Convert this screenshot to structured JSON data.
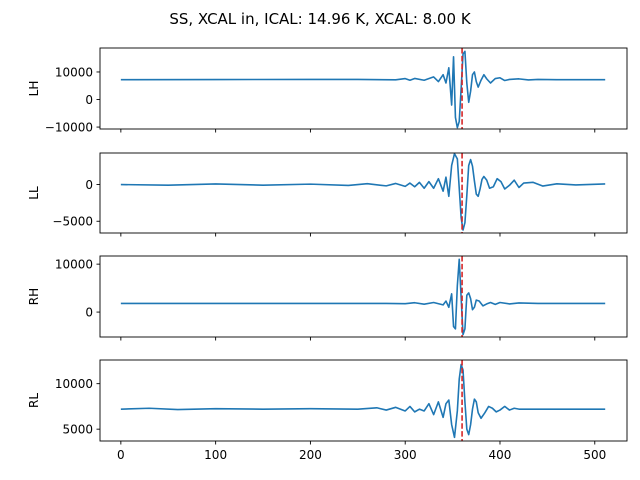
{
  "chart_data": {
    "type": "line",
    "title": "SS, XCAL in, ICAL: 14.96 K, XCAL: 8.00 K",
    "shared_x": true,
    "xlim": [
      -22,
      534
    ],
    "x_ticks": [
      0,
      100,
      200,
      300,
      400,
      500
    ],
    "x_tick_labels": [
      "0",
      "100",
      "200",
      "300",
      "400",
      "500"
    ],
    "series_color": "#1f77b4",
    "marker_color": "#d62728",
    "marker_x": 360,
    "panels": [
      {
        "ylabel": "LH",
        "ylim": [
          -10700,
          18700
        ],
        "y_ticks": [
          -10000,
          0,
          10000
        ],
        "y_tick_labels": [
          "−10000",
          "0",
          "10000"
        ],
        "baseline": 7200,
        "points": [
          [
            0,
            7200
          ],
          [
            100,
            7250
          ],
          [
            200,
            7300
          ],
          [
            250,
            7300
          ],
          [
            290,
            7150
          ],
          [
            300,
            7600
          ],
          [
            305,
            7000
          ],
          [
            310,
            7650
          ],
          [
            320,
            7000
          ],
          [
            330,
            8200
          ],
          [
            335,
            6500
          ],
          [
            340,
            9000
          ],
          [
            343,
            6000
          ],
          [
            346,
            11500
          ],
          [
            349,
            -2000
          ],
          [
            351,
            15500
          ],
          [
            353,
            -6500
          ],
          [
            355,
            -10200
          ],
          [
            357,
            -8000
          ],
          [
            359,
            4000
          ],
          [
            361,
            16500
          ],
          [
            363,
            17500
          ],
          [
            365,
            6000
          ],
          [
            367,
            -1000
          ],
          [
            369,
            3000
          ],
          [
            371,
            9000
          ],
          [
            373,
            10000
          ],
          [
            375,
            6500
          ],
          [
            377,
            4500
          ],
          [
            380,
            7000
          ],
          [
            383,
            9000
          ],
          [
            386,
            7500
          ],
          [
            390,
            6000
          ],
          [
            395,
            7600
          ],
          [
            400,
            7900
          ],
          [
            405,
            6900
          ],
          [
            410,
            7300
          ],
          [
            420,
            7500
          ],
          [
            430,
            7100
          ],
          [
            440,
            7300
          ],
          [
            460,
            7200
          ],
          [
            511,
            7200
          ]
        ]
      },
      {
        "ylabel": "LL",
        "ylim": [
          -6600,
          4300
        ],
        "y_ticks": [
          -5000,
          0
        ],
        "y_tick_labels": [
          "−5000",
          "0"
        ],
        "baseline": 0,
        "points": [
          [
            0,
            0
          ],
          [
            50,
            -80
          ],
          [
            100,
            80
          ],
          [
            150,
            -80
          ],
          [
            200,
            60
          ],
          [
            240,
            -120
          ],
          [
            260,
            120
          ],
          [
            280,
            -180
          ],
          [
            290,
            150
          ],
          [
            300,
            -250
          ],
          [
            305,
            200
          ],
          [
            310,
            -300
          ],
          [
            315,
            300
          ],
          [
            320,
            -500
          ],
          [
            325,
            400
          ],
          [
            330,
            -500
          ],
          [
            335,
            800
          ],
          [
            340,
            -900
          ],
          [
            343,
            1000
          ],
          [
            346,
            -1600
          ],
          [
            349,
            2600
          ],
          [
            352,
            4200
          ],
          [
            355,
            3500
          ],
          [
            357,
            -500
          ],
          [
            359,
            -4500
          ],
          [
            361,
            -6200
          ],
          [
            363,
            -5200
          ],
          [
            365,
            -1500
          ],
          [
            367,
            2600
          ],
          [
            369,
            3400
          ],
          [
            371,
            2500
          ],
          [
            373,
            500
          ],
          [
            375,
            -1300
          ],
          [
            377,
            -1600
          ],
          [
            379,
            -600
          ],
          [
            381,
            700
          ],
          [
            383,
            1100
          ],
          [
            386,
            600
          ],
          [
            389,
            -500
          ],
          [
            393,
            -300
          ],
          [
            397,
            800
          ],
          [
            401,
            400
          ],
          [
            405,
            -600
          ],
          [
            410,
            -100
          ],
          [
            415,
            600
          ],
          [
            420,
            -400
          ],
          [
            425,
            200
          ],
          [
            435,
            300
          ],
          [
            445,
            -200
          ],
          [
            460,
            100
          ],
          [
            480,
            -50
          ],
          [
            511,
            80
          ]
        ]
      },
      {
        "ylabel": "RH",
        "ylim": [
          -5200,
          11700
        ],
        "y_ticks": [
          0,
          10000
        ],
        "y_tick_labels": [
          "0",
          "10000"
        ],
        "baseline": 1800,
        "points": [
          [
            0,
            1800
          ],
          [
            100,
            1800
          ],
          [
            200,
            1800
          ],
          [
            280,
            1800
          ],
          [
            300,
            1750
          ],
          [
            310,
            1950
          ],
          [
            320,
            1650
          ],
          [
            330,
            2000
          ],
          [
            340,
            1500
          ],
          [
            343,
            2300
          ],
          [
            346,
            1000
          ],
          [
            349,
            3800
          ],
          [
            351,
            -3000
          ],
          [
            353,
            -3500
          ],
          [
            355,
            5500
          ],
          [
            357,
            11000
          ],
          [
            359,
            3000
          ],
          [
            361,
            -4700
          ],
          [
            363,
            -3500
          ],
          [
            365,
            3500
          ],
          [
            367,
            4000
          ],
          [
            369,
            2800
          ],
          [
            371,
            500
          ],
          [
            373,
            1000
          ],
          [
            375,
            2500
          ],
          [
            378,
            2300
          ],
          [
            382,
            1300
          ],
          [
            386,
            1700
          ],
          [
            390,
            2000
          ],
          [
            395,
            1600
          ],
          [
            400,
            2000
          ],
          [
            410,
            1700
          ],
          [
            420,
            1900
          ],
          [
            440,
            1800
          ],
          [
            511,
            1800
          ]
        ]
      },
      {
        "ylabel": "RL",
        "ylim": [
          3700,
          12600
        ],
        "y_ticks": [
          5000,
          10000
        ],
        "y_tick_labels": [
          "5000",
          "10000"
        ],
        "baseline": 7200,
        "points": [
          [
            0,
            7200
          ],
          [
            30,
            7300
          ],
          [
            60,
            7150
          ],
          [
            100,
            7250
          ],
          [
            150,
            7200
          ],
          [
            200,
            7250
          ],
          [
            250,
            7200
          ],
          [
            270,
            7350
          ],
          [
            280,
            7100
          ],
          [
            290,
            7400
          ],
          [
            300,
            7000
          ],
          [
            305,
            7500
          ],
          [
            310,
            6900
          ],
          [
            315,
            7200
          ],
          [
            320,
            7000
          ],
          [
            325,
            7800
          ],
          [
            330,
            6600
          ],
          [
            335,
            8000
          ],
          [
            340,
            6300
          ],
          [
            343,
            7800
          ],
          [
            346,
            8200
          ],
          [
            349,
            5500
          ],
          [
            352,
            4100
          ],
          [
            355,
            7000
          ],
          [
            357,
            10500
          ],
          [
            359,
            12100
          ],
          [
            361,
            11500
          ],
          [
            363,
            8000
          ],
          [
            365,
            5000
          ],
          [
            367,
            4400
          ],
          [
            369,
            5500
          ],
          [
            371,
            7200
          ],
          [
            373,
            8300
          ],
          [
            375,
            8000
          ],
          [
            377,
            6800
          ],
          [
            380,
            6200
          ],
          [
            384,
            6800
          ],
          [
            388,
            7500
          ],
          [
            392,
            7300
          ],
          [
            396,
            6900
          ],
          [
            400,
            7100
          ],
          [
            405,
            7500
          ],
          [
            410,
            7100
          ],
          [
            415,
            7300
          ],
          [
            420,
            7200
          ],
          [
            440,
            7200
          ],
          [
            511,
            7200
          ]
        ]
      }
    ]
  }
}
